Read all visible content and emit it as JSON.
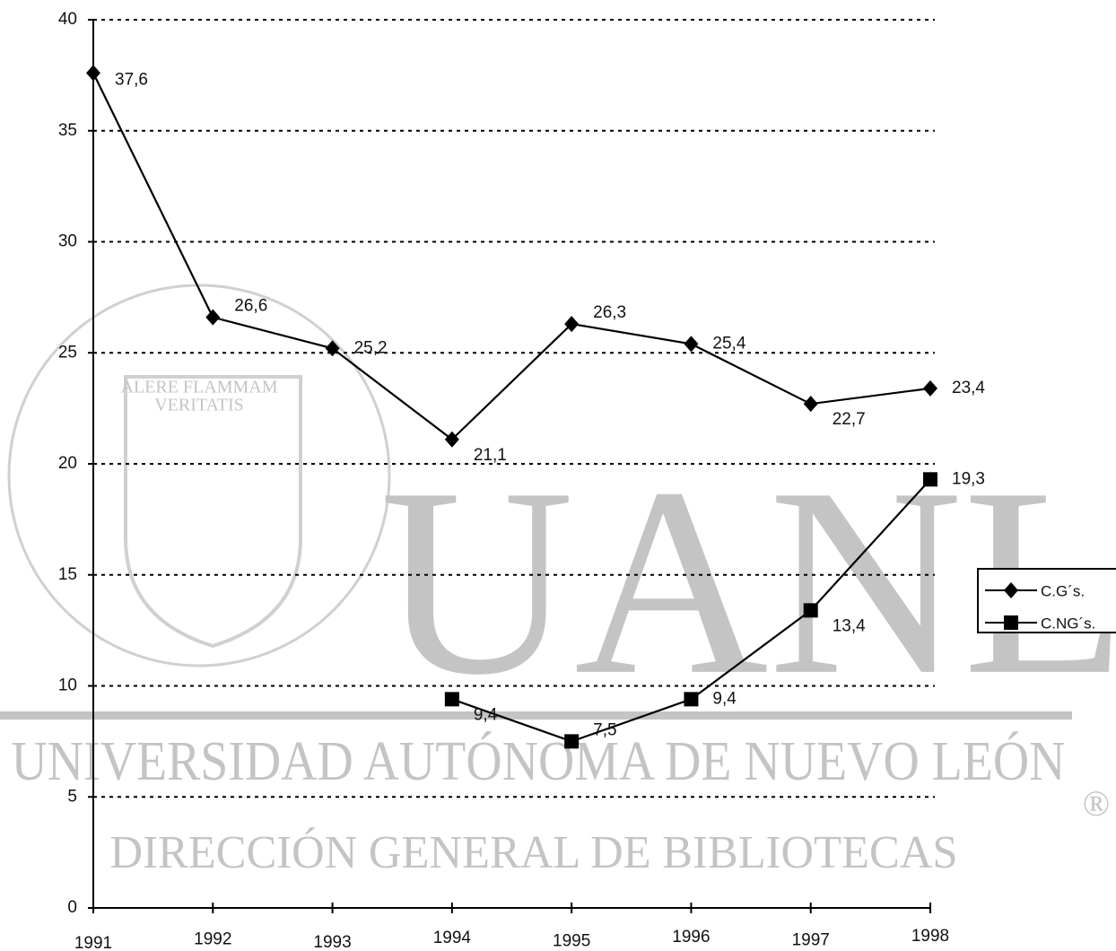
{
  "chart_data": {
    "type": "line",
    "categories": [
      "1991",
      "1992",
      "1993",
      "1994",
      "1995",
      "1996",
      "1997",
      "1998"
    ],
    "series": [
      {
        "name": "C.G´s.",
        "color": "#000000",
        "marker": "diamond",
        "values": [
          37.6,
          26.6,
          25.2,
          21.1,
          26.3,
          25.4,
          22.7,
          23.4
        ],
        "value_labels": [
          "37,6",
          "26,6",
          "25,2",
          "21,1",
          "26,3",
          "25,4",
          "22,7",
          "23,4"
        ]
      },
      {
        "name": "C.NG´s.",
        "color": "#000000",
        "marker": "square",
        "values": [
          null,
          null,
          null,
          9.4,
          7.5,
          9.4,
          13.4,
          19.3
        ],
        "value_labels": [
          null,
          null,
          null,
          "9,4",
          "7,5",
          "9,4",
          "13,4",
          "19,3"
        ]
      }
    ],
    "ylim": [
      0,
      40
    ],
    "yticks": [
      0,
      5,
      10,
      15,
      20,
      25,
      30,
      35,
      40
    ],
    "grid": true,
    "legend": "right"
  },
  "watermark": {
    "initials": "UANL",
    "university": "UNIVERSIDAD AUTÓNOMA DE NUEVO LEÓN",
    "library": "DIRECCIÓN GENERAL DE BIBLIOTECAS",
    "motto": "ALERE FLAMMAM",
    "motto2": "VERITATIS",
    "registered": "®"
  }
}
